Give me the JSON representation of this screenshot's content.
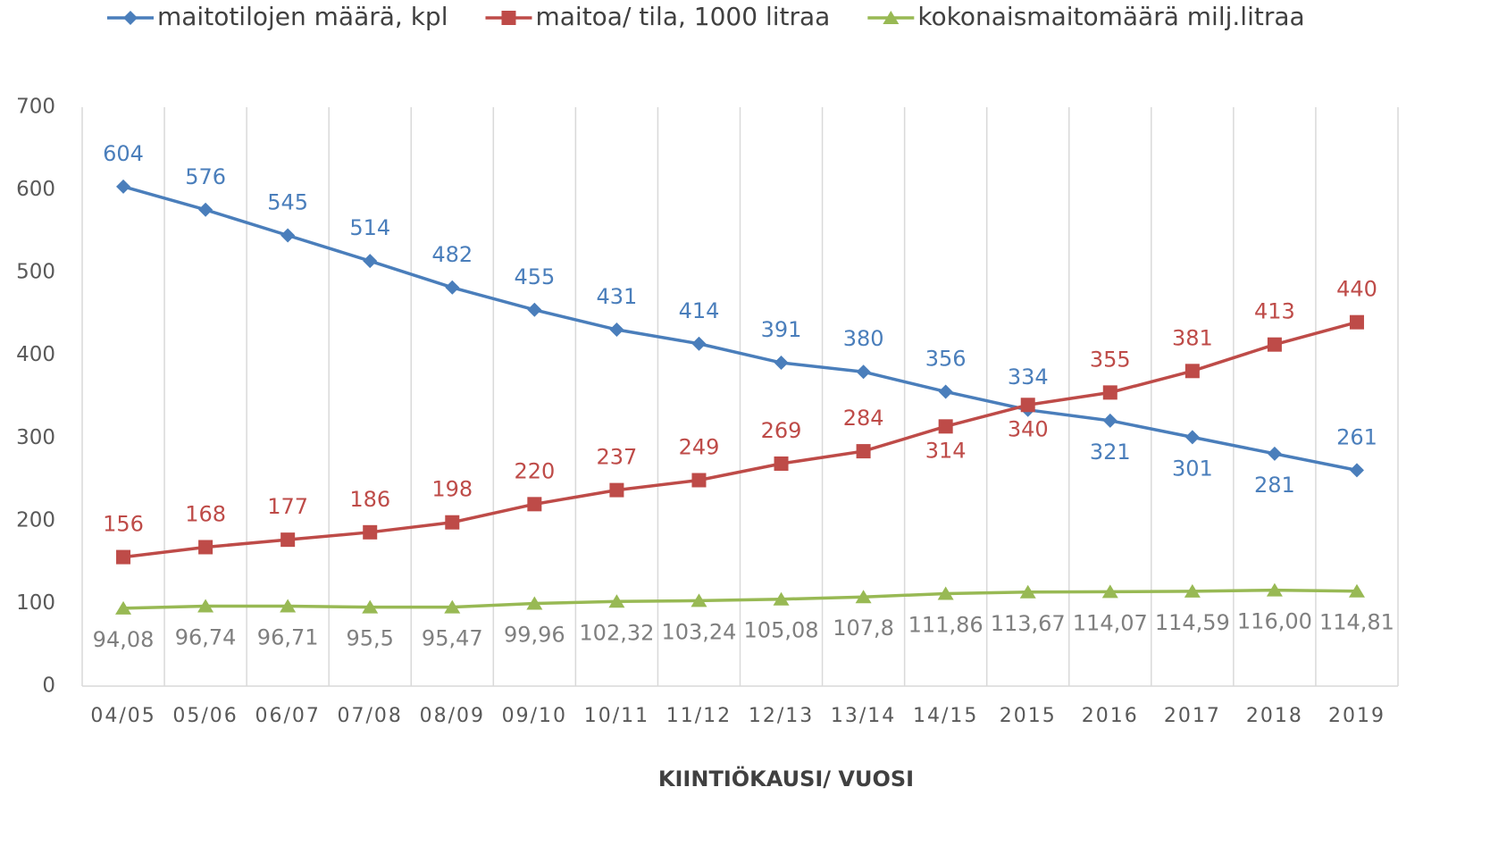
{
  "chart_data": {
    "type": "line",
    "categories": [
      "04/05",
      "05/06",
      "06/07",
      "07/08",
      "08/09",
      "09/10",
      "10/11",
      "11/12",
      "12/13",
      "13/14",
      "14/15",
      "2015",
      "2016",
      "2017",
      "2018",
      "2019"
    ],
    "x_label": "KIINTIÖKAUSI/ VUOSI",
    "series": [
      {
        "name": "maitotilojen määrä, kpl",
        "color": "#4a7ebb",
        "marker": "diamond",
        "values": [
          604,
          576,
          545,
          514,
          482,
          455,
          431,
          414,
          391,
          380,
          356,
          334,
          321,
          301,
          281,
          261
        ]
      },
      {
        "name": "maitoa/ tila, 1000 litraa",
        "color": "#be4b48",
        "marker": "square",
        "values": [
          156,
          168,
          177,
          186,
          198,
          220,
          237,
          249,
          269,
          284,
          314,
          340,
          355,
          381,
          413,
          440
        ]
      },
      {
        "name": "kokonaismaitomäärä milj.litraa",
        "color": "#98b954",
        "marker": "triangle",
        "values": [
          94.08,
          96.74,
          96.71,
          95.5,
          95.47,
          99.96,
          102.32,
          103.24,
          105.08,
          107.8,
          111.86,
          113.67,
          114.07,
          114.59,
          116,
          114.81
        ],
        "value_labels": [
          "94,08",
          "96,74",
          "96,71",
          "95,5",
          "95,47",
          "99,96",
          "102,32",
          "103,24",
          "105,08",
          "107,8",
          "111,86",
          "113,67",
          "114,07",
          "114,59",
          "116,00",
          "114,81"
        ]
      }
    ],
    "ylim": [
      0,
      700
    ],
    "yticks": [
      0,
      100,
      200,
      300,
      400,
      500,
      600,
      700
    ],
    "grid": "vertical",
    "legend": "top"
  }
}
